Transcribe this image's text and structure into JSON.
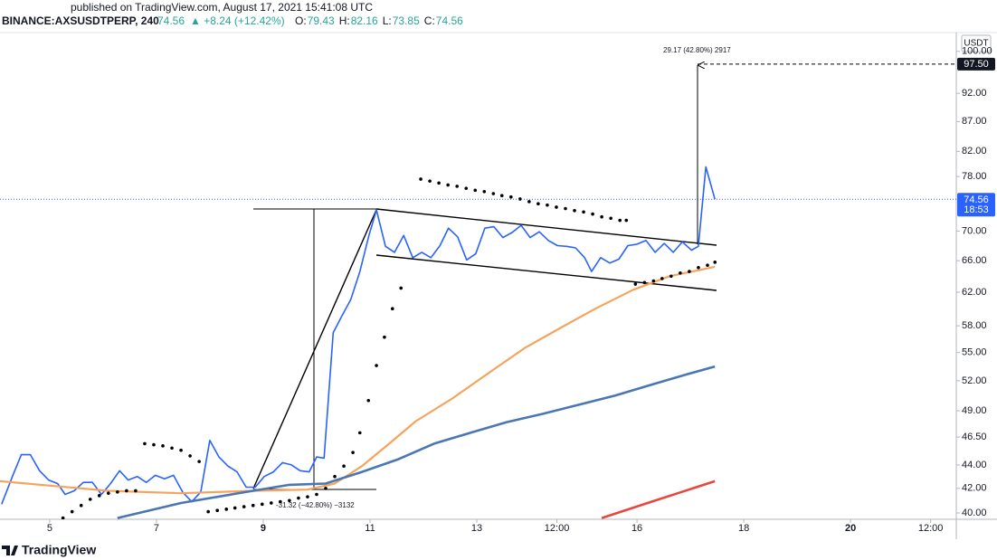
{
  "chart_data": {
    "type": "line",
    "published": "published on TradingView.com, August 17, 2021 15:41:08 UTC",
    "symbol": "BINANCE:AXSUSDTPERP, 240",
    "last": "74.56",
    "change": "▲ +8.24 (+12.42%)",
    "ohlc": [
      {
        "label": "O:",
        "value": "79.43"
      },
      {
        "label": "H:",
        "value": "82.16"
      },
      {
        "label": "L:",
        "value": "73.85"
      },
      {
        "label": "C:",
        "value": "74.56"
      }
    ],
    "currency": "USDT",
    "brand": "TradingView",
    "annotations": [
      "29.17 (42.80%) 2917",
      "-31.32 (−42.80%) −3132"
    ],
    "target_label": {
      "value": 97.5,
      "label": "97.50"
    },
    "price_label": {
      "value": 74.56,
      "label": "74.56"
    },
    "countdown": "18:53",
    "log_scale": true,
    "xlim": [
      4.07,
      21.98
    ],
    "ylim": [
      39.5,
      103.8
    ],
    "xticks": [
      {
        "value": 5,
        "label": "5"
      },
      {
        "value": 7,
        "label": "7"
      },
      {
        "value": 9,
        "label": "9"
      },
      {
        "value": 11,
        "label": "11"
      },
      {
        "value": 13,
        "label": "13"
      },
      {
        "value": 14.5,
        "label": "12:00"
      },
      {
        "value": 16,
        "label": "16"
      },
      {
        "value": 18,
        "label": "18"
      },
      {
        "value": 20,
        "label": "20"
      },
      {
        "value": 21.5,
        "label": "12:00"
      }
    ],
    "yticks": [
      {
        "value": 40,
        "label": "40.00"
      },
      {
        "value": 42,
        "label": "42.00"
      },
      {
        "value": 44,
        "label": "44.00"
      },
      {
        "value": 46.5,
        "label": "46.50"
      },
      {
        "value": 49,
        "label": "49.00"
      },
      {
        "value": 52,
        "label": "52.00"
      },
      {
        "value": 55,
        "label": "55.00"
      },
      {
        "value": 58,
        "label": "58.00"
      },
      {
        "value": 62,
        "label": "62.00"
      },
      {
        "value": 66,
        "label": "66.00"
      },
      {
        "value": 70,
        "label": "70.00"
      },
      {
        "value": 78,
        "label": "78.00"
      },
      {
        "value": 82,
        "label": "82.00"
      },
      {
        "value": 87,
        "label": "87.00"
      },
      {
        "value": 92,
        "label": "92.00"
      },
      {
        "value": 100,
        "label": "100.00"
      }
    ],
    "series": [
      {
        "color": "#2962ff",
        "style": "line",
        "width": 1.6,
        "x": [
          4.1,
          4.31,
          4.47,
          4.64,
          4.81,
          4.98,
          5.15,
          5.29,
          5.46,
          5.63,
          5.8,
          5.97,
          6.14,
          6.31,
          6.47,
          6.64,
          6.81,
          6.98,
          7.15,
          7.32,
          7.49,
          7.66,
          7.83,
          8.0,
          8.17,
          8.34,
          8.51,
          8.68,
          8.85,
          9.02,
          9.19,
          9.36,
          9.53,
          9.69,
          9.86,
          10.0,
          10.14,
          10.31,
          10.47,
          10.64,
          10.81,
          10.98,
          11.12,
          11.29,
          11.46,
          11.63,
          11.8,
          11.97,
          12.14,
          12.31,
          12.47,
          12.64,
          12.81,
          12.98,
          13.15,
          13.32,
          13.49,
          13.66,
          13.83,
          14.0,
          14.17,
          14.34,
          14.51,
          14.68,
          14.85,
          15.02,
          15.15,
          15.32,
          15.49,
          15.66,
          15.83,
          16.0,
          16.17,
          16.34,
          16.51,
          16.68,
          16.85,
          17.02,
          17.15,
          17.29,
          17.46
        ],
        "values": [
          40.7,
          43.1,
          44.9,
          44.9,
          43.5,
          42.7,
          42.4,
          41.5,
          41.8,
          42.5,
          42.5,
          41.5,
          42.4,
          43.5,
          42.7,
          43.0,
          42.5,
          43.1,
          42.8,
          43.1,
          41.7,
          40.9,
          41.7,
          46.2,
          44.7,
          43.9,
          43.4,
          42.1,
          42.1,
          43.0,
          43.4,
          44.2,
          44.0,
          43.5,
          43.4,
          44.7,
          44.6,
          57.2,
          59.1,
          61.1,
          64.6,
          69.4,
          73.0,
          67.9,
          67.1,
          69.4,
          66.4,
          67.1,
          66.4,
          68.0,
          70.4,
          69.2,
          66.1,
          66.9,
          70.4,
          70.6,
          69.1,
          69.8,
          70.8,
          69.1,
          69.9,
          68.7,
          68.0,
          67.9,
          67.7,
          66.4,
          64.6,
          66.4,
          65.7,
          66.2,
          68.0,
          68.2,
          68.7,
          67.1,
          68.3,
          67.1,
          68.5,
          67.4,
          67.9,
          79.5,
          74.56
        ]
      },
      {
        "color": "#f7a35c",
        "style": "line",
        "width": 2.2,
        "x": [
          4.07,
          5.08,
          6.1,
          7.46,
          8.81,
          9.83,
          10.34,
          10.85,
          11.36,
          11.86,
          12.54,
          13.22,
          13.9,
          14.58,
          15.25,
          15.93,
          16.61,
          17.46
        ],
        "values": [
          42.6,
          42.2,
          41.8,
          41.6,
          41.8,
          41.9,
          42.4,
          43.9,
          45.9,
          48.0,
          50.2,
          52.8,
          55.5,
          57.8,
          60.1,
          62.3,
          64.0,
          65.2
        ]
      },
      {
        "color": "#4a77b4",
        "style": "line",
        "width": 2.6,
        "x": [
          6.27,
          7.46,
          8.81,
          9.49,
          10.17,
          10.85,
          11.53,
          12.2,
          12.88,
          13.56,
          14.24,
          14.92,
          15.59,
          16.27,
          16.95,
          17.46
        ],
        "values": [
          39.6,
          40.8,
          41.8,
          42.3,
          42.4,
          43.4,
          44.5,
          45.9,
          46.9,
          47.9,
          48.7,
          49.6,
          50.5,
          51.6,
          52.7,
          53.5
        ]
      },
      {
        "color": "#e8473d",
        "style": "line",
        "width": 2.6,
        "x": [
          15.34,
          16.27,
          17.46
        ],
        "values": [
          39.6,
          40.9,
          42.6
        ]
      },
      {
        "color": "#000000",
        "style": "dots",
        "x": [
          5.25,
          5.42,
          5.59,
          5.76,
          5.93,
          6.1,
          6.27,
          6.44,
          6.61,
          6.78,
          6.95,
          7.12,
          7.29,
          7.46,
          7.63,
          7.8,
          7.97,
          8.14,
          8.31,
          8.47,
          8.64,
          8.81,
          8.98,
          9.15,
          9.32,
          9.49,
          9.66,
          9.83,
          10.0,
          10.17,
          10.34,
          10.51,
          10.68,
          10.81,
          10.97,
          11.12,
          11.27,
          11.42,
          11.58,
          11.95,
          12.12,
          12.29,
          12.46,
          12.63,
          12.8,
          12.97,
          13.14,
          13.31,
          13.47,
          13.64,
          13.81,
          13.98,
          14.15,
          14.32,
          14.49,
          14.66,
          14.83,
          15.0,
          15.17,
          15.34,
          15.51,
          15.68,
          15.8,
          15.97,
          16.14,
          16.31,
          16.47,
          16.64,
          16.81,
          16.98,
          17.15,
          17.32,
          17.46
        ],
        "values": [
          39.6,
          40.1,
          40.6,
          41.1,
          41.4,
          41.6,
          41.7,
          41.8,
          41.8,
          45.9,
          45.8,
          45.7,
          45.5,
          45.3,
          44.8,
          44.3,
          40.1,
          40.2,
          40.3,
          40.4,
          40.5,
          40.6,
          40.7,
          40.8,
          40.9,
          41.0,
          41.2,
          41.3,
          41.5,
          42.0,
          43.0,
          43.9,
          45.1,
          46.9,
          50.0,
          53.6,
          56.7,
          60.0,
          62.5,
          77.6,
          77.3,
          77.0,
          76.7,
          76.5,
          76.2,
          75.9,
          75.7,
          75.4,
          75.1,
          74.9,
          74.6,
          74.2,
          73.9,
          73.7,
          73.4,
          73.2,
          72.9,
          72.7,
          72.4,
          72.0,
          71.8,
          71.5,
          71.5,
          63.0,
          63.2,
          63.4,
          63.7,
          64.0,
          64.4,
          64.6,
          65.1,
          65.4,
          65.8
        ]
      }
    ]
  }
}
